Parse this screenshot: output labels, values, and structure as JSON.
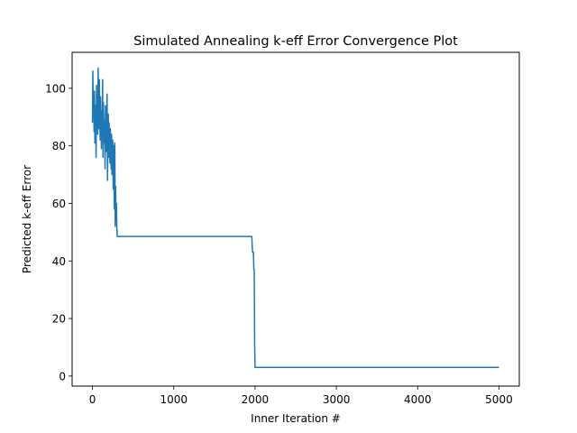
{
  "chart_data": {
    "type": "line",
    "title": "Simulated Annealing k-eff Error Convergence Plot",
    "xlabel": "Inner Iteration #",
    "ylabel": "Predicted k-eff Error",
    "xlim": [
      -250,
      5250
    ],
    "ylim": [
      -3.5,
      112.5
    ],
    "xticks": [
      0,
      1000,
      2000,
      3000,
      4000,
      5000
    ],
    "yticks": [
      0,
      20,
      40,
      60,
      80,
      100
    ],
    "grid": false,
    "legend": "none",
    "series": [
      {
        "color": "#1f77b4",
        "x": [
          0,
          5,
          10,
          15,
          20,
          25,
          30,
          35,
          40,
          45,
          50,
          55,
          60,
          65,
          70,
          75,
          80,
          85,
          90,
          95,
          100,
          105,
          110,
          115,
          120,
          125,
          130,
          135,
          140,
          145,
          150,
          155,
          160,
          165,
          170,
          175,
          180,
          185,
          190,
          195,
          200,
          205,
          210,
          215,
          220,
          225,
          230,
          235,
          240,
          245,
          250,
          255,
          260,
          265,
          270,
          275,
          280,
          285,
          290,
          295,
          300,
          305,
          310,
          315,
          320,
          330,
          1950,
          1955,
          1960,
          1965,
          1970,
          1975,
          1980,
          1985,
          1990,
          1995,
          2000,
          2005,
          2010,
          2015,
          2020,
          5000
        ],
        "values": [
          88,
          106,
          92,
          97,
          85,
          99,
          81,
          94,
          88,
          76,
          101,
          89,
          95,
          84,
          107,
          93,
          86,
          103,
          90,
          82,
          97,
          88,
          79,
          92,
          85,
          103,
          76,
          95,
          87,
          81,
          89,
          72,
          94,
          84,
          78,
          86,
          98,
          68,
          83,
          91,
          76,
          88,
          80,
          74,
          86,
          79,
          72,
          84,
          70,
          77,
          82,
          65,
          80,
          67,
          58,
          81,
          52,
          66,
          54,
          60,
          52,
          48.5,
          48.5,
          48.5,
          48.5,
          48.5,
          48.5,
          48.5,
          48.5,
          45,
          43,
          43,
          43,
          37,
          37,
          11,
          3,
          3,
          3,
          3,
          3,
          3
        ]
      }
    ]
  }
}
